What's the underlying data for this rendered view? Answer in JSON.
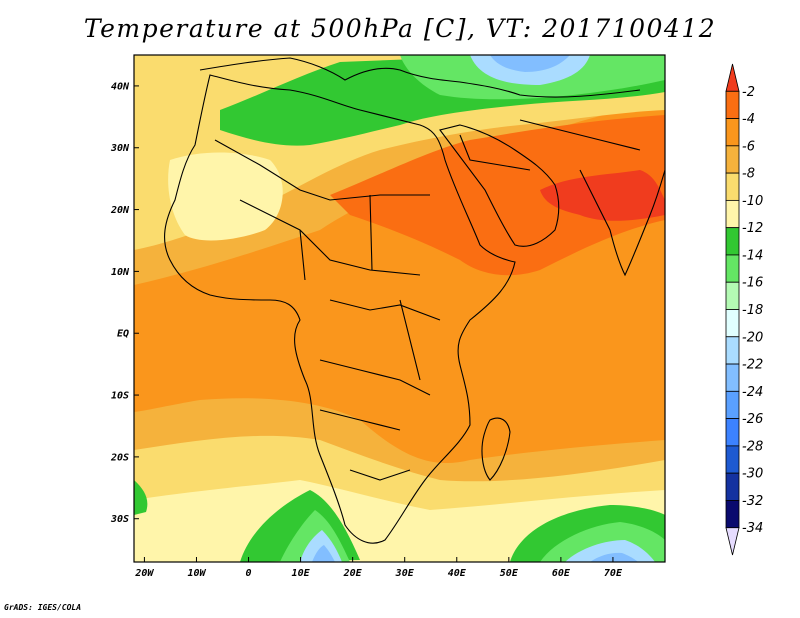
{
  "title": "Temperature at 500hPa [C], VT: 2017100412",
  "credit": "GrADS: IGES/COLA",
  "map": {
    "lon_range": [
      -22,
      80
    ],
    "lat_range": [
      -37,
      45
    ],
    "x_ticks": [
      {
        "value": -20,
        "label": "20W"
      },
      {
        "value": -10,
        "label": "10W"
      },
      {
        "value": 0,
        "label": "0"
      },
      {
        "value": 10,
        "label": "10E"
      },
      {
        "value": 20,
        "label": "20E"
      },
      {
        "value": 30,
        "label": "30E"
      },
      {
        "value": 40,
        "label": "40E"
      },
      {
        "value": 50,
        "label": "50E"
      },
      {
        "value": 60,
        "label": "60E"
      },
      {
        "value": 70,
        "label": "70E"
      }
    ],
    "y_ticks": [
      {
        "value": 40,
        "label": "40N"
      },
      {
        "value": 30,
        "label": "30N"
      },
      {
        "value": 20,
        "label": "20N"
      },
      {
        "value": 10,
        "label": "10N"
      },
      {
        "value": 0,
        "label": "EQ"
      },
      {
        "value": -10,
        "label": "10S"
      },
      {
        "value": -20,
        "label": "20S"
      },
      {
        "value": -30,
        "label": "30S"
      }
    ]
  },
  "colorbar": {
    "labels": [
      "-2",
      "-4",
      "-6",
      "-8",
      "-10",
      "-12",
      "-14",
      "-16",
      "-18",
      "-20",
      "-22",
      "-24",
      "-26",
      "-28",
      "-30",
      "-32",
      "-34"
    ],
    "colors": [
      "#f03c1e",
      "#fa6e12",
      "#fa961c",
      "#f5b23c",
      "#fadc6e",
      "#fff5aa",
      "#32c832",
      "#64e664",
      "#b4fab4",
      "#e1ffff",
      "#aadcff",
      "#82beff",
      "#5aa0ff",
      "#3c82ff",
      "#1e5ad2",
      "#1432a0",
      "#0a0a6e",
      "#e6dcff"
    ]
  }
}
